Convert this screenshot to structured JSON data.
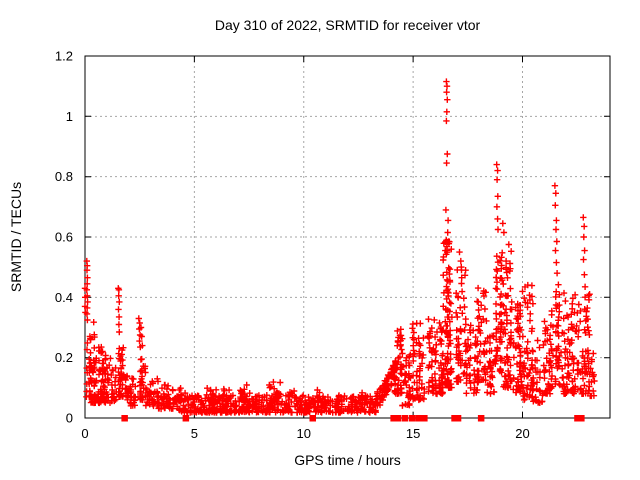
{
  "header": {
    "title": "Day 310 of 2022, SRMTID for receiver vtor"
  },
  "chart_data": {
    "type": "scatter",
    "title": "Day 310 of 2022, SRMTID for receiver vtor",
    "xlabel": "GPS time / hours",
    "ylabel": "SRMTID / TECUs",
    "xlim": [
      0,
      24
    ],
    "ylim": [
      0,
      1.2
    ],
    "xticks": [
      {
        "v": 0,
        "label": "0"
      },
      {
        "v": 5,
        "label": "5"
      },
      {
        "v": 10,
        "label": "10"
      },
      {
        "v": 15,
        "label": "15"
      },
      {
        "v": 20,
        "label": "20"
      }
    ],
    "yticks": [
      {
        "v": 0,
        "label": "0"
      },
      {
        "v": 0.2,
        "label": "0.2"
      },
      {
        "v": 0.4,
        "label": "0.4"
      },
      {
        "v": 0.6,
        "label": "0.6"
      },
      {
        "v": 0.8,
        "label": "0.8"
      },
      {
        "v": 1,
        "label": "1"
      },
      {
        "v": 1.2,
        "label": "1.2"
      }
    ],
    "grid": true,
    "legend": "none",
    "marker": {
      "glyph": "plus",
      "color": "#ff0000",
      "size": 7
    },
    "zero_marker": {
      "glyph": "filled-square",
      "color": "#ff0000",
      "x": [
        1.8,
        4.6,
        10.4,
        14.1,
        14.3,
        14.62,
        14.95,
        15.25,
        15.5,
        16.88,
        17.04,
        18.1,
        22.5,
        22.68
      ]
    },
    "seed": 42,
    "clusters_format": "[x_start, x_end, y_min, y_max, count, density_power, column_texture]",
    "clusters": [
      [
        0.02,
        0.45,
        0.07,
        0.32,
        45,
        2.2,
        1
      ],
      [
        0.25,
        1.45,
        0.05,
        0.2,
        95,
        2.0,
        0
      ],
      [
        0.5,
        0.95,
        0.14,
        0.24,
        14,
        1.5,
        0
      ],
      [
        1.45,
        1.85,
        0.07,
        0.26,
        40,
        1.8,
        1
      ],
      [
        1.85,
        2.35,
        0.04,
        0.14,
        40,
        1.6,
        0
      ],
      [
        2.38,
        2.75,
        0.06,
        0.2,
        30,
        1.7,
        1
      ],
      [
        2.75,
        3.35,
        0.04,
        0.14,
        40,
        1.8,
        0
      ],
      [
        3.35,
        4.1,
        0.03,
        0.11,
        45,
        1.8,
        0
      ],
      [
        4.1,
        13.35,
        0.018,
        0.075,
        520,
        1.6,
        0
      ],
      [
        4.25,
        4.7,
        0.055,
        0.105,
        14,
        1.4,
        0
      ],
      [
        5.55,
        6.0,
        0.05,
        0.1,
        12,
        1.4,
        0
      ],
      [
        6.3,
        6.65,
        0.055,
        0.1,
        10,
        1.4,
        0
      ],
      [
        7.1,
        7.55,
        0.055,
        0.115,
        15,
        1.4,
        0
      ],
      [
        8.3,
        8.95,
        0.055,
        0.12,
        20,
        1.4,
        0
      ],
      [
        9.35,
        9.65,
        0.05,
        0.09,
        8,
        1.4,
        0
      ],
      [
        10.35,
        10.75,
        0.05,
        0.095,
        10,
        1.4,
        0
      ],
      [
        11.35,
        11.75,
        0.045,
        0.085,
        8,
        1.4,
        0
      ],
      [
        12.45,
        12.85,
        0.045,
        0.085,
        8,
        1.4,
        0
      ],
      [
        14.15,
        14.5,
        0.08,
        0.3,
        45,
        1.6,
        1
      ],
      [
        14.5,
        14.95,
        0.04,
        0.23,
        40,
        1.6,
        1
      ],
      [
        14.95,
        15.55,
        0.06,
        0.32,
        55,
        1.6,
        1
      ],
      [
        15.55,
        16.35,
        0.08,
        0.33,
        80,
        1.5,
        1
      ],
      [
        16.35,
        16.78,
        0.1,
        0.6,
        95,
        1.5,
        1
      ],
      [
        16.95,
        17.45,
        0.12,
        0.52,
        55,
        1.6,
        1
      ],
      [
        17.45,
        17.95,
        0.08,
        0.32,
        45,
        1.6,
        1
      ],
      [
        17.95,
        18.35,
        0.12,
        0.46,
        45,
        1.5,
        1
      ],
      [
        18.35,
        18.72,
        0.08,
        0.28,
        30,
        1.5,
        1
      ],
      [
        18.75,
        19.02,
        0.15,
        0.55,
        35,
        1.4,
        1
      ],
      [
        19.0,
        19.5,
        0.1,
        0.58,
        85,
        1.6,
        1
      ],
      [
        19.5,
        20.0,
        0.08,
        0.38,
        55,
        1.6,
        1
      ],
      [
        20.0,
        20.45,
        0.05,
        0.45,
        55,
        1.6,
        1
      ],
      [
        20.45,
        20.95,
        0.05,
        0.26,
        35,
        1.6,
        1
      ],
      [
        20.95,
        21.45,
        0.08,
        0.36,
        50,
        1.6,
        1
      ],
      [
        21.45,
        21.8,
        0.1,
        0.45,
        40,
        1.5,
        1
      ],
      [
        21.8,
        22.45,
        0.08,
        0.42,
        70,
        1.6,
        1
      ],
      [
        22.5,
        23.05,
        0.08,
        0.42,
        65,
        1.5,
        1
      ],
      [
        23.0,
        23.3,
        0.07,
        0.22,
        15,
        1.5,
        0
      ]
    ],
    "ramp": {
      "x0": 13.35,
      "x1": 14.25,
      "y_start": 0.05,
      "y_end": 0.16,
      "spread": 0.06,
      "n": 75
    },
    "high_points": [
      [
        0.08,
        0.52
      ],
      [
        0.1,
        0.505
      ],
      [
        0.09,
        0.49
      ],
      [
        0.11,
        0.465
      ],
      [
        0.1,
        0.445
      ],
      [
        0.08,
        0.425
      ],
      [
        0.1,
        0.405
      ],
      [
        0.12,
        0.385
      ],
      [
        0.1,
        0.365
      ],
      [
        0.09,
        0.345
      ],
      [
        0.11,
        0.325
      ],
      [
        0.0,
        0.43
      ],
      [
        0.01,
        0.4
      ],
      [
        0.0,
        0.37
      ],
      [
        0.02,
        0.35
      ],
      [
        1.52,
        0.43
      ],
      [
        1.55,
        0.425
      ],
      [
        1.54,
        0.405
      ],
      [
        1.57,
        0.385
      ],
      [
        1.53,
        0.36
      ],
      [
        1.56,
        0.335
      ],
      [
        1.55,
        0.31
      ],
      [
        1.57,
        0.285
      ],
      [
        2.46,
        0.33
      ],
      [
        2.5,
        0.315
      ],
      [
        2.48,
        0.295
      ],
      [
        2.52,
        0.275
      ],
      [
        2.49,
        0.255
      ],
      [
        2.53,
        0.235
      ],
      [
        2.56,
        0.3
      ],
      [
        2.59,
        0.27
      ],
      [
        2.62,
        0.24
      ],
      [
        16.52,
        1.115
      ],
      [
        16.55,
        1.1
      ],
      [
        16.53,
        1.08
      ],
      [
        16.56,
        1.055
      ],
      [
        16.54,
        1.015
      ],
      [
        16.52,
        0.985
      ],
      [
        16.56,
        0.875
      ],
      [
        16.53,
        0.845
      ],
      [
        16.5,
        0.69
      ],
      [
        16.6,
        0.655
      ],
      [
        16.58,
        0.615
      ],
      [
        16.63,
        0.585
      ],
      [
        16.47,
        0.555
      ],
      [
        17.12,
        0.55
      ],
      [
        17.18,
        0.52
      ],
      [
        18.82,
        0.84
      ],
      [
        18.86,
        0.82
      ],
      [
        18.84,
        0.79
      ],
      [
        18.87,
        0.735
      ],
      [
        18.83,
        0.7
      ],
      [
        18.86,
        0.66
      ],
      [
        18.88,
        0.625
      ],
      [
        19.1,
        0.645
      ],
      [
        19.15,
        0.615
      ],
      [
        21.48,
        0.77
      ],
      [
        21.52,
        0.745
      ],
      [
        21.5,
        0.705
      ],
      [
        21.55,
        0.655
      ],
      [
        21.53,
        0.625
      ],
      [
        21.57,
        0.585
      ],
      [
        21.51,
        0.555
      ],
      [
        21.55,
        0.515
      ],
      [
        21.58,
        0.48
      ],
      [
        22.78,
        0.665
      ],
      [
        22.82,
        0.635
      ],
      [
        22.8,
        0.6
      ],
      [
        22.84,
        0.555
      ],
      [
        22.79,
        0.525
      ],
      [
        22.83,
        0.475
      ],
      [
        22.86,
        0.435
      ]
    ],
    "colors": {
      "marker": "#ff0000",
      "grid": "#a6a6a6",
      "border": "#000000",
      "text": "#000000",
      "background": "#ffffff"
    }
  }
}
